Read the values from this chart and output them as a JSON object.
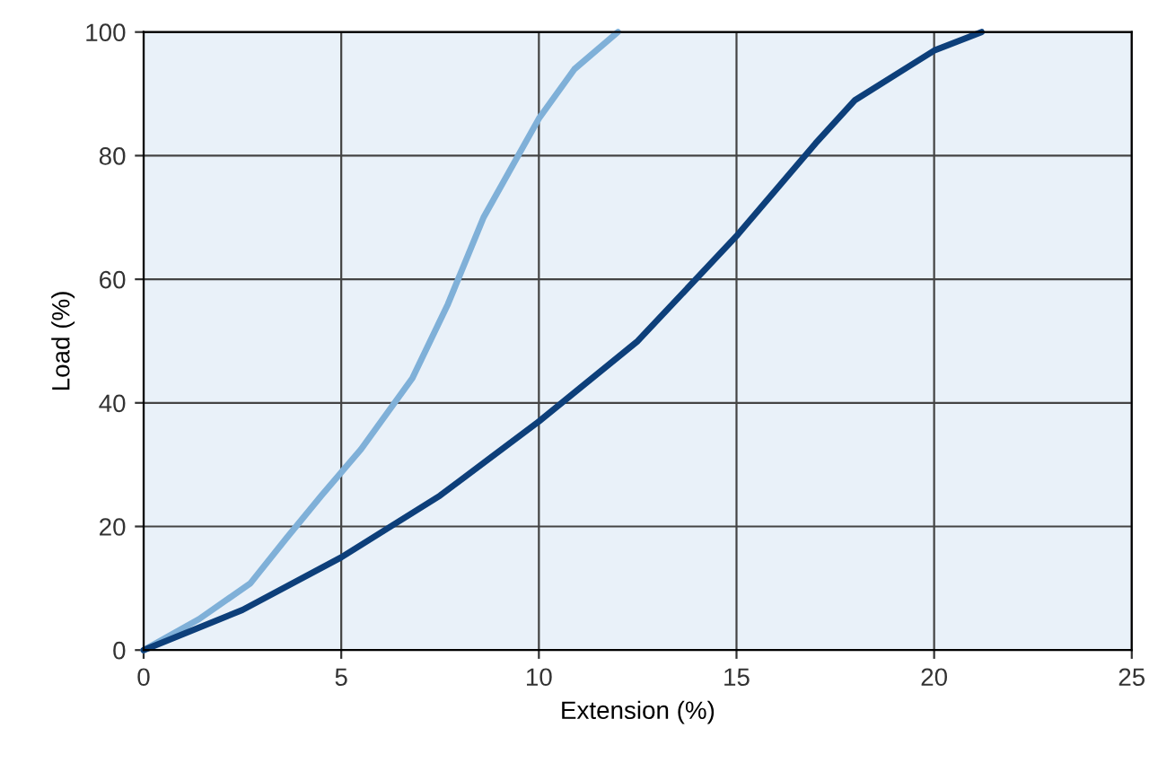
{
  "chart_data": {
    "type": "line",
    "xlabel": "Extension (%)",
    "ylabel": "Load (%)",
    "xlim": [
      0,
      25
    ],
    "ylim": [
      0,
      100
    ],
    "xticks": [
      0,
      5,
      10,
      15,
      20,
      25
    ],
    "yticks": [
      0,
      20,
      40,
      60,
      80,
      100
    ],
    "grid": true,
    "line_style": "solid",
    "series": [
      {
        "color": "#7fb0d8",
        "x": [
          0,
          1.4,
          2.7,
          3.6,
          4.5,
          5.5,
          6.8,
          7.7,
          8.6,
          10,
          10.9,
          12
        ],
        "values": [
          0,
          5,
          10.8,
          18,
          25,
          32.5,
          44,
          56,
          70,
          86,
          94,
          100
        ]
      },
      {
        "color": "#0d3f7a",
        "x": [
          0,
          2.5,
          5,
          7.5,
          10,
          12.5,
          15,
          17,
          18,
          20,
          21.2
        ],
        "values": [
          0,
          6.5,
          15,
          25,
          37,
          50,
          67,
          82,
          89,
          97,
          100
        ]
      }
    ]
  }
}
